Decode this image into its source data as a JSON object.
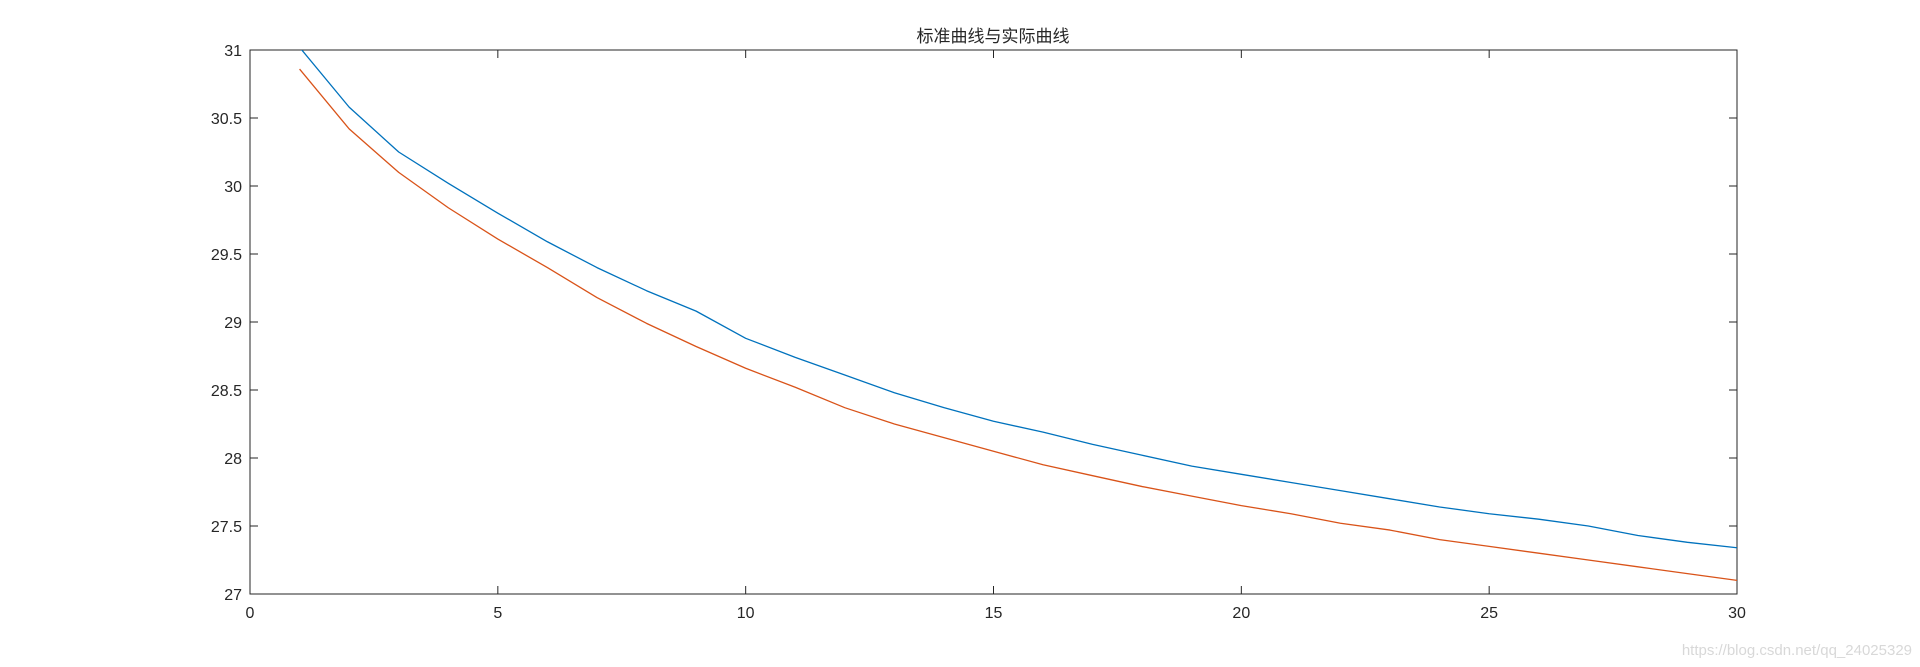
{
  "chart_data": {
    "type": "line",
    "title": "标准曲线与实际曲线",
    "xlabel": "",
    "ylabel": "",
    "xlim": [
      0,
      30
    ],
    "ylim": [
      27,
      31
    ],
    "xticks": [
      "0",
      "5",
      "10",
      "15",
      "20",
      "25",
      "30"
    ],
    "yticks": [
      "27",
      "27.5",
      "28",
      "28.5",
      "29",
      "29.5",
      "30",
      "30.5",
      "31"
    ],
    "grid": false,
    "legend": "none",
    "x": [
      1,
      2,
      3,
      4,
      5,
      6,
      7,
      8,
      9,
      10,
      11,
      12,
      13,
      14,
      15,
      16,
      17,
      18,
      19,
      20,
      21,
      22,
      23,
      24,
      25,
      26,
      27,
      28,
      29,
      30
    ],
    "series": [
      {
        "color": "#0072bd",
        "values": [
          31.02,
          30.58,
          30.25,
          30.02,
          29.8,
          29.59,
          29.4,
          29.23,
          29.08,
          28.88,
          28.74,
          28.61,
          28.48,
          28.37,
          28.27,
          28.19,
          28.1,
          28.02,
          27.94,
          27.88,
          27.82,
          27.76,
          27.7,
          27.64,
          27.59,
          27.55,
          27.5,
          27.43,
          27.38,
          27.34
        ]
      },
      {
        "color": "#d95319",
        "values": [
          30.86,
          30.42,
          30.1,
          29.84,
          29.61,
          29.4,
          29.18,
          28.99,
          28.82,
          28.66,
          28.52,
          28.37,
          28.25,
          28.15,
          28.05,
          27.95,
          27.87,
          27.79,
          27.72,
          27.65,
          27.59,
          27.52,
          27.47,
          27.4,
          27.35,
          27.3,
          27.25,
          27.2,
          27.15,
          27.1
        ]
      }
    ]
  },
  "watermark": "https://blog.csdn.net/qq_24025329"
}
